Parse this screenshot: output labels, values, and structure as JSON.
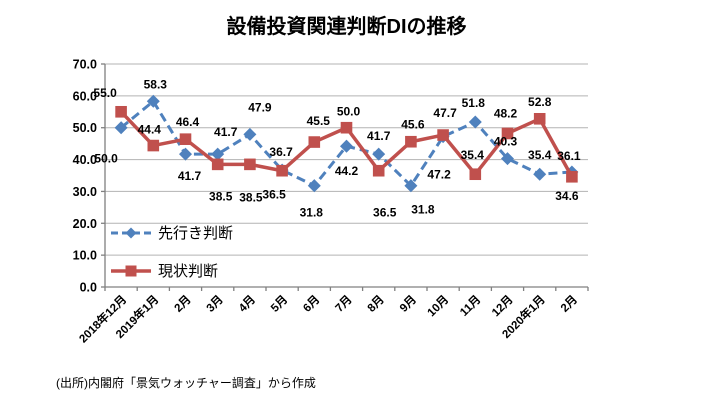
{
  "title": "設備投資関連判断DIの推移",
  "source_note": "(出所)内閣府「景気ウォッチャー調査」から作成",
  "chart_data": {
    "type": "line",
    "categories": [
      "2018年12月",
      "2019年1月",
      "2月",
      "3月",
      "4月",
      "5月",
      "6月",
      "7月",
      "8月",
      "9月",
      "10月",
      "11月",
      "12月",
      "2020年1月",
      "2月"
    ],
    "series": [
      {
        "name": "先行き判断",
        "values": [
          50.0,
          58.3,
          41.7,
          41.7,
          47.9,
          36.7,
          31.8,
          44.2,
          41.7,
          31.8,
          47.2,
          51.8,
          40.3,
          35.4,
          36.1
        ],
        "color": "#4F81BD",
        "marker": "diamond",
        "line_style": "dashed",
        "label_offsets": [
          [
            -15,
            31
          ],
          [
            2,
            -17
          ],
          [
            4,
            22
          ],
          [
            8,
            -22
          ],
          [
            10,
            -27
          ],
          [
            -1,
            -18
          ],
          [
            -3,
            27
          ],
          [
            0,
            25
          ],
          [
            0,
            -18
          ],
          [
            12,
            24
          ],
          [
            -4,
            38
          ],
          [
            -2,
            -19
          ],
          [
            -2,
            -17
          ],
          [
            0,
            -19
          ],
          [
            -3,
            -16
          ]
        ]
      },
      {
        "name": "現状判断",
        "values": [
          55.0,
          44.4,
          46.4,
          38.5,
          38.5,
          36.5,
          45.5,
          50.0,
          36.5,
          45.6,
          47.7,
          35.4,
          48.2,
          52.8,
          34.6
        ],
        "color": "#C0504D",
        "marker": "square",
        "line_style": "solid",
        "label_offsets": [
          [
            -16,
            -19
          ],
          [
            -4,
            -16
          ],
          [
            2,
            -17
          ],
          [
            3,
            32
          ],
          [
            1,
            33
          ],
          [
            -8,
            24
          ],
          [
            4,
            -21
          ],
          [
            2,
            -16
          ],
          [
            6,
            42
          ],
          [
            2,
            -17
          ],
          [
            2,
            -22
          ],
          [
            -3,
            -19
          ],
          [
            -2,
            -20
          ],
          [
            0,
            -17
          ],
          [
            -5,
            19
          ]
        ]
      }
    ],
    "ylim": [
      0,
      70
    ],
    "ytick_step": 10,
    "ytick_labels": [
      "0.0",
      "10.0",
      "20.0",
      "30.0",
      "40.0",
      "50.0",
      "60.0",
      "70.0"
    ],
    "grid": true,
    "legend_position": "inside-bottom-left",
    "axis_color": "#808080",
    "grid_color": "#B3B3B3",
    "data_label_color": "#000000"
  }
}
